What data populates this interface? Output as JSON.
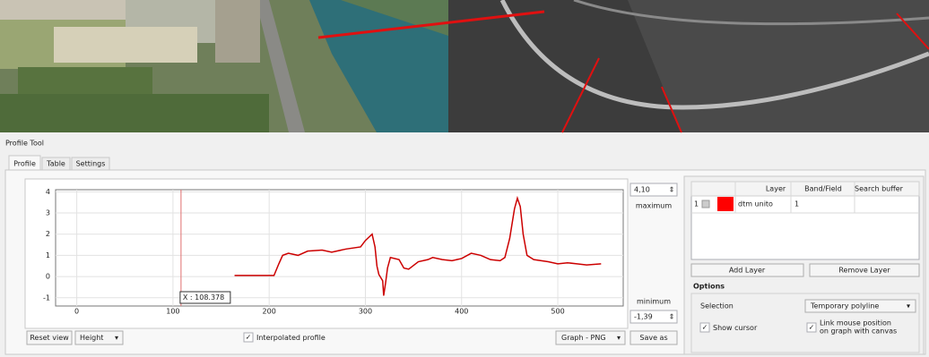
{
  "window": {
    "title": "Profile Tool",
    "tabs": [
      "Profile",
      "Table",
      "Settings"
    ]
  },
  "chart_data": {
    "type": "line",
    "x": [
      164,
      205,
      210,
      214,
      220,
      230,
      240,
      255,
      265,
      280,
      295,
      300,
      307,
      310,
      312,
      314,
      318,
      319,
      321,
      323,
      326,
      335,
      340,
      345,
      355,
      365,
      370,
      380,
      390,
      400,
      410,
      420,
      430,
      440,
      445,
      450,
      455,
      458,
      461,
      464,
      468,
      475,
      490,
      500,
      510,
      520,
      530,
      545
    ],
    "series": [
      {
        "color": "#cc0000",
        "values": [
          0.05,
          0.05,
          0.6,
          1.0,
          1.1,
          1.0,
          1.2,
          1.25,
          1.15,
          1.3,
          1.4,
          1.7,
          2.0,
          1.4,
          0.5,
          0.1,
          -0.2,
          -0.9,
          -0.3,
          0.4,
          0.9,
          0.8,
          0.4,
          0.35,
          0.7,
          0.8,
          0.9,
          0.8,
          0.75,
          0.85,
          1.1,
          1.0,
          0.8,
          0.75,
          0.9,
          1.8,
          3.2,
          3.7,
          3.3,
          2.0,
          1.0,
          0.8,
          0.7,
          0.6,
          0.65,
          0.6,
          0.55,
          0.6
        ]
      }
    ],
    "xlim": [
      -22,
      568
    ],
    "ylim": [
      -1.39,
      4.1
    ],
    "xticks": [
      0,
      100,
      200,
      300,
      400,
      500
    ],
    "yticks": [
      -1,
      0,
      1,
      2,
      3,
      4
    ],
    "grid": true,
    "cursor": {
      "x": 108.378,
      "label": "X : 108.378"
    }
  },
  "range": {
    "maximum": "4,10",
    "maximum_label": "maximum",
    "minimum": "-1,39",
    "minimum_label": "minimum"
  },
  "controls": {
    "reset": "Reset view",
    "mode": "Height",
    "interpolated": "Interpolated profile",
    "export": "Graph - PNG",
    "save": "Save as"
  },
  "layers": {
    "columns": [
      "Layer",
      "Band/Field",
      "Search buffer"
    ],
    "rows": [
      {
        "index": "1",
        "color": "#ff0000",
        "layer": "dtm unito",
        "band": "1"
      }
    ],
    "add": "Add Layer",
    "remove": "Remove Layer"
  },
  "options": {
    "title": "Options",
    "selection_label": "Selection",
    "selection": "Temporary polyline",
    "show_cursor": "Show cursor",
    "link": [
      "Link mouse position",
      "on graph with canvas"
    ]
  }
}
